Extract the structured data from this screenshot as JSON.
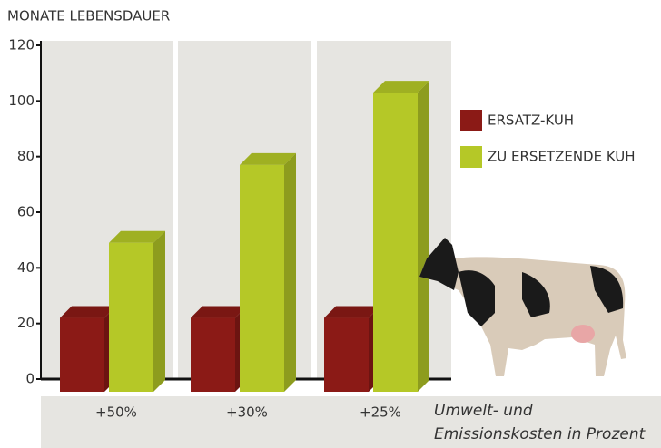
{
  "chart_data": {
    "type": "bar3d",
    "title": "MONATE LEBENSDAUER",
    "categories": [
      "+50%",
      "+30%",
      "+25%"
    ],
    "series": [
      {
        "name": "ERSATZ-KUH",
        "color": "#8b1a16",
        "values": [
          22,
          22,
          22
        ]
      },
      {
        "name": "ZU ERSETZENDE KUH",
        "color": "#b5c827",
        "values": [
          49,
          77,
          103
        ]
      }
    ],
    "ylim": [
      0,
      120
    ],
    "yticks": [
      0,
      20,
      40,
      60,
      80,
      100,
      120
    ],
    "x_label": [
      "Umwelt- und",
      "Emissionskosten in Prozent"
    ]
  }
}
